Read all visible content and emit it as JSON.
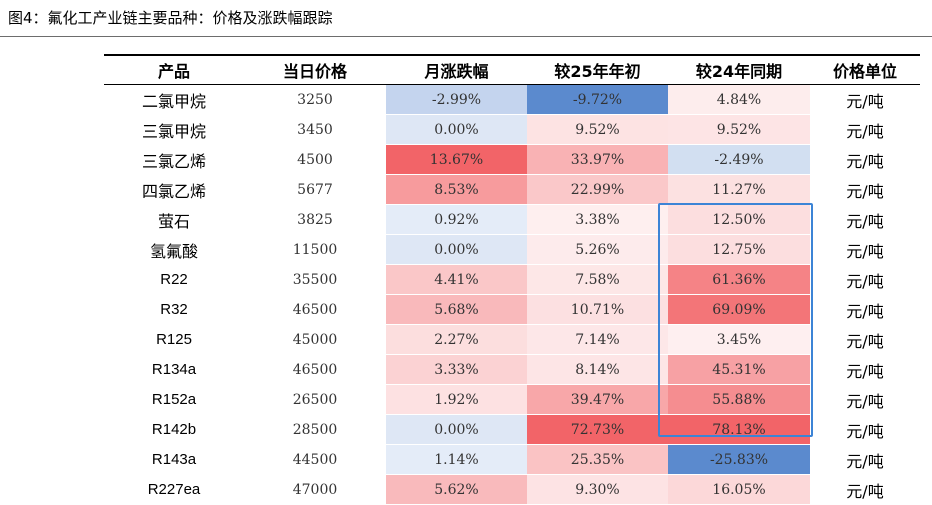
{
  "title": "图4：氟化工产业链主要品种：价格及涨跌幅跟踪",
  "headers": [
    "产品",
    "当日价格",
    "月涨跌幅",
    "较25年年初",
    "较24年同期",
    "价格单位"
  ],
  "rows": [
    [
      "二氯甲烷",
      "3250",
      "-2.99%",
      "-9.72%",
      "4.84%",
      "元/吨"
    ],
    [
      "三氯甲烷",
      "3450",
      "0.00%",
      "9.52%",
      "9.52%",
      "元/吨"
    ],
    [
      "三氯乙烯",
      "4500",
      "13.67%",
      "33.97%",
      "-2.49%",
      "元/吨"
    ],
    [
      "四氯乙烯",
      "5677",
      "8.53%",
      "22.99%",
      "11.27%",
      "元/吨"
    ],
    [
      "萤石",
      "3825",
      "0.92%",
      "3.38%",
      "12.50%",
      "元/吨"
    ],
    [
      "氢氟酸",
      "11500",
      "0.00%",
      "5.26%",
      "12.75%",
      "元/吨"
    ],
    [
      "R22",
      "35500",
      "4.41%",
      "7.58%",
      "61.36%",
      "元/吨"
    ],
    [
      "R32",
      "46500",
      "5.68%",
      "10.71%",
      "69.09%",
      "元/吨"
    ],
    [
      "R125",
      "45000",
      "2.27%",
      "7.14%",
      "3.45%",
      "元/吨"
    ],
    [
      "R134a",
      "46500",
      "3.33%",
      "8.14%",
      "45.31%",
      "元/吨"
    ],
    [
      "R152a",
      "26500",
      "1.92%",
      "39.47%",
      "55.88%",
      "元/吨"
    ],
    [
      "R142b",
      "28500",
      "0.00%",
      "72.73%",
      "78.13%",
      "元/吨"
    ],
    [
      "R143a",
      "44500",
      "1.14%",
      "25.35%",
      "-25.83%",
      "元/吨"
    ],
    [
      "R227ea",
      "47000",
      "5.62%",
      "9.30%",
      "16.05%",
      "元/吨"
    ]
  ],
  "colors": {
    "text": "#000000",
    "highlight_box": "#3c84d6",
    "title_rule": "#6d6d6d"
  }
}
